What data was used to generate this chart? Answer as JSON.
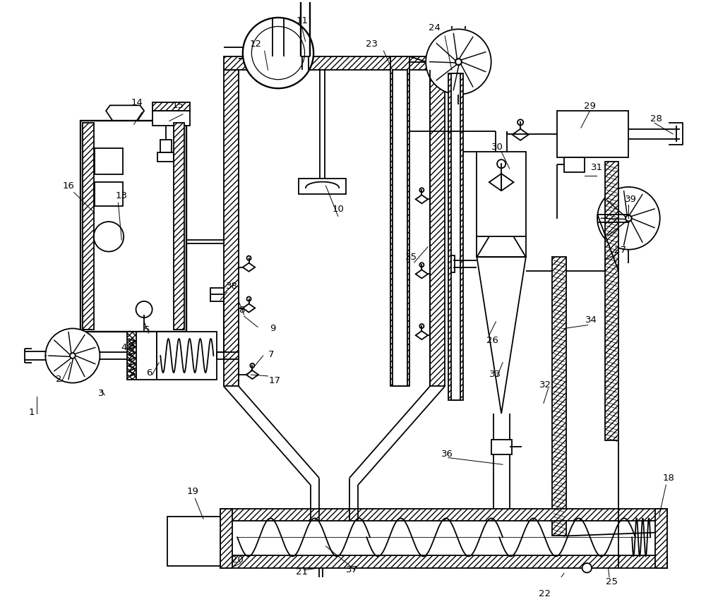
{
  "background_color": "#ffffff",
  "line_color": "#000000",
  "fig_w": 10.0,
  "fig_h": 8.46,
  "dpi": 100,
  "label_fs": 9.5
}
